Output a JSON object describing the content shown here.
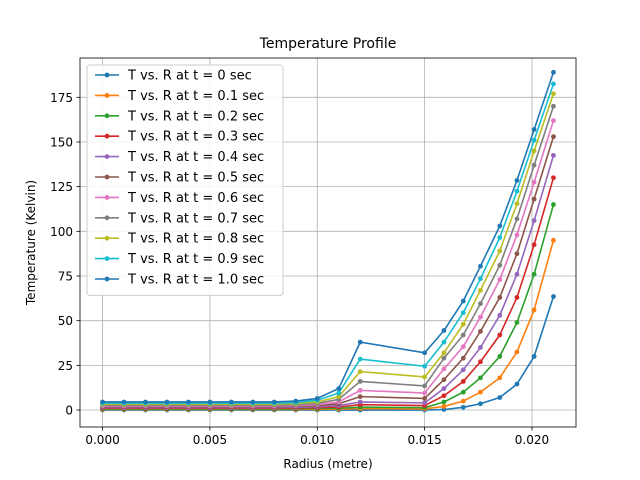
{
  "chart_data": {
    "type": "line",
    "title": "Temperature Profile",
    "xlabel": "Radius (metre)",
    "ylabel": "Temperature (Kelvin)",
    "xlim": [
      -0.00105,
      0.02205
    ],
    "ylim": [
      -9.5,
      197
    ],
    "xticks": [
      0.0,
      0.005,
      0.01,
      0.015,
      0.02
    ],
    "xtick_labels": [
      "0.000",
      "0.005",
      "0.010",
      "0.015",
      "0.020"
    ],
    "yticks": [
      0,
      25,
      50,
      75,
      100,
      125,
      150,
      175
    ],
    "ytick_labels": [
      "0",
      "25",
      "50",
      "75",
      "100",
      "125",
      "150",
      "175"
    ],
    "grid": true,
    "legend_position": "top-left",
    "x": [
      0.0,
      0.001,
      0.002,
      0.003,
      0.004,
      0.005,
      0.006,
      0.007,
      0.008,
      0.009,
      0.01,
      0.011,
      0.012,
      0.015,
      0.0159,
      0.0168,
      0.0176,
      0.0185,
      0.0193,
      0.0201,
      0.021
    ],
    "series": [
      {
        "name": "T vs. R at t = 0 sec",
        "color": "#1f77b4",
        "values": [
          0,
          0,
          0,
          0,
          0,
          0,
          0,
          0,
          0,
          0,
          0,
          0,
          0,
          0,
          0.3,
          1.5,
          3.5,
          7,
          14.5,
          30,
          63.5
        ]
      },
      {
        "name": "T vs. R at t = 0.1 sec",
        "color": "#ff7f0e",
        "values": [
          0.3,
          0.3,
          0.3,
          0.3,
          0.3,
          0.3,
          0.3,
          0.3,
          0.3,
          0.3,
          0.4,
          0.5,
          0.8,
          0.6,
          2,
          5,
          10,
          18,
          32.5,
          56,
          95
        ]
      },
      {
        "name": "T vs. R at t = 0.2 sec",
        "color": "#2ca02c",
        "values": [
          0.6,
          0.6,
          0.6,
          0.6,
          0.6,
          0.6,
          0.6,
          0.6,
          0.6,
          0.7,
          0.8,
          1,
          1.6,
          1.3,
          4.5,
          10,
          18,
          30,
          49,
          76,
          115
        ]
      },
      {
        "name": "T vs. R at t = 0.3 sec",
        "color": "#d62728",
        "values": [
          1,
          1,
          1,
          1,
          1,
          1,
          1,
          1,
          1,
          1.1,
          1.3,
          1.7,
          3,
          2.5,
          8,
          16,
          27,
          42,
          63,
          92.5,
          130
        ]
      },
      {
        "name": "T vs. R at t = 0.4 sec",
        "color": "#9467bd",
        "values": [
          1.4,
          1.4,
          1.4,
          1.4,
          1.4,
          1.4,
          1.4,
          1.4,
          1.4,
          1.5,
          1.8,
          2.5,
          4.5,
          4,
          12,
          22.5,
          35,
          53,
          76,
          106,
          142.5
        ]
      },
      {
        "name": "T vs. R at t = 0.5 sec",
        "color": "#8c564b",
        "values": [
          1.8,
          1.8,
          1.8,
          1.8,
          1.8,
          1.8,
          1.8,
          1.8,
          1.8,
          2,
          2.4,
          3.5,
          7.5,
          6.5,
          17,
          29,
          44,
          63,
          87.5,
          118,
          153
        ]
      },
      {
        "name": "T vs. R at t = 0.6 sec",
        "color": "#e377c2",
        "values": [
          2.3,
          2.3,
          2.3,
          2.3,
          2.3,
          2.3,
          2.3,
          2.3,
          2.3,
          2.5,
          3,
          4.5,
          11,
          9.5,
          23,
          35.5,
          52,
          73,
          98,
          127.5,
          162
        ]
      },
      {
        "name": "T vs. R at t = 0.7 sec",
        "color": "#7f7f7f",
        "values": [
          2.8,
          2.8,
          2.8,
          2.8,
          2.8,
          2.8,
          2.8,
          2.8,
          2.8,
          3,
          3.7,
          6,
          16,
          13.5,
          29,
          42,
          59.5,
          81,
          107,
          137,
          170
        ]
      },
      {
        "name": "T vs. R at t = 0.8 sec",
        "color": "#bcbd22",
        "values": [
          3.3,
          3.3,
          3.3,
          3.3,
          3.3,
          3.3,
          3.3,
          3.3,
          3.3,
          3.6,
          4.5,
          7.5,
          21.5,
          18.5,
          32,
          48,
          67,
          89,
          115.5,
          145,
          177
        ]
      },
      {
        "name": "T vs. R at t = 0.9 sec",
        "color": "#17becf",
        "values": [
          3.9,
          3.9,
          3.9,
          3.9,
          3.9,
          3.9,
          3.9,
          3.9,
          3.9,
          4.2,
          5.5,
          9.5,
          28.5,
          24.5,
          38,
          54.5,
          73.5,
          96.5,
          122.5,
          151,
          182.5
        ]
      },
      {
        "name": "T vs. R at t = 1.0 sec",
        "color": "#1f77b4",
        "values": [
          4.5,
          4.5,
          4.5,
          4.5,
          4.5,
          4.5,
          4.5,
          4.5,
          4.5,
          5,
          6.5,
          12,
          38,
          32,
          44.5,
          61,
          80.5,
          103,
          128.5,
          157,
          189
        ]
      }
    ]
  }
}
